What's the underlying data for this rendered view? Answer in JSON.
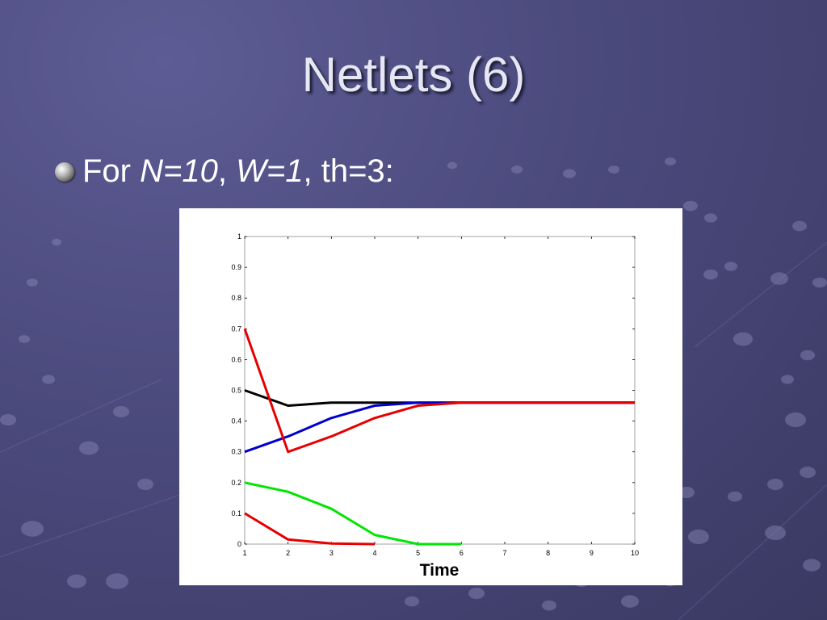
{
  "slide": {
    "title": "Netlets (6)",
    "bullet": {
      "prefix": "For ",
      "n_label": "N=10",
      "sep1": ", ",
      "w_label": "W=1",
      "sep2": ", ",
      "th_label": "th=3:"
    }
  },
  "chart_data": {
    "type": "line",
    "title": "",
    "xlabel": "Time",
    "ylabel": "",
    "xlim": [
      1,
      10
    ],
    "ylim": [
      0,
      1
    ],
    "x_ticks": [
      1,
      2,
      3,
      4,
      5,
      6,
      7,
      8,
      9,
      10
    ],
    "y_ticks": [
      0,
      0.1,
      0.2,
      0.3,
      0.4,
      0.5,
      0.6,
      0.7,
      0.8,
      0.9,
      1
    ],
    "grid": false,
    "series": [
      {
        "color": "#000000",
        "x": [
          1,
          2,
          3,
          4,
          5,
          6,
          7,
          8,
          9,
          10
        ],
        "y": [
          0.5,
          0.45,
          0.46,
          0.46,
          0.46,
          0.46,
          0.46,
          0.46,
          0.46,
          0.46
        ]
      },
      {
        "color": "#0000cc",
        "x": [
          1,
          2,
          3,
          4,
          5,
          6,
          7,
          8,
          9,
          10
        ],
        "y": [
          0.3,
          0.35,
          0.41,
          0.45,
          0.46,
          0.46,
          0.46,
          0.46,
          0.46,
          0.46
        ]
      },
      {
        "color": "#e60000",
        "x": [
          1,
          2,
          3,
          4,
          5,
          6,
          7,
          8,
          9,
          10
        ],
        "y": [
          0.7,
          0.3,
          0.35,
          0.41,
          0.45,
          0.46,
          0.46,
          0.46,
          0.46,
          0.46
        ]
      },
      {
        "color": "#00e600",
        "x": [
          1,
          2,
          3,
          4,
          5,
          6
        ],
        "y": [
          0.2,
          0.17,
          0.115,
          0.03,
          0.0,
          0.0
        ]
      },
      {
        "color": "#e60000",
        "x": [
          1,
          2,
          3,
          4
        ],
        "y": [
          0.1,
          0.015,
          0.002,
          0.0
        ]
      }
    ]
  }
}
